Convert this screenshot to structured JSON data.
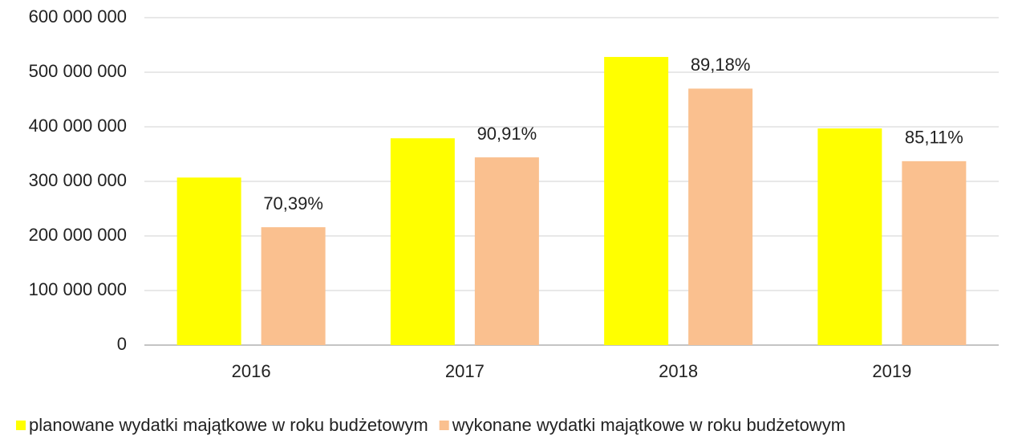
{
  "chart_data": {
    "type": "bar",
    "categories": [
      "2016",
      "2017",
      "2018",
      "2019"
    ],
    "series": [
      {
        "name": "planowane wydatki majątkowe w roku budżetowym",
        "color": "#ffff00",
        "values": [
          307000000,
          379000000,
          528000000,
          397000000
        ]
      },
      {
        "name": "wykonane wydatki majątkowe w roku budżetowym",
        "color": "#fac08f",
        "values": [
          216000000,
          344000000,
          470000000,
          337000000
        ]
      }
    ],
    "annotations": [
      "70,39%",
      "90,91%",
      "89,18%",
      "85,11%"
    ],
    "ylim": [
      0,
      600000000
    ],
    "yticks": [
      {
        "value": 0,
        "label": "0"
      },
      {
        "value": 100000000,
        "label": "100 000 000"
      },
      {
        "value": 200000000,
        "label": "200 000 000"
      },
      {
        "value": 300000000,
        "label": "300 000 000"
      },
      {
        "value": 400000000,
        "label": "400 000 000"
      },
      {
        "value": 500000000,
        "label": "500 000 000"
      },
      {
        "value": 600000000,
        "label": "600 000 000"
      }
    ],
    "grid": true,
    "legend": "bottom"
  }
}
